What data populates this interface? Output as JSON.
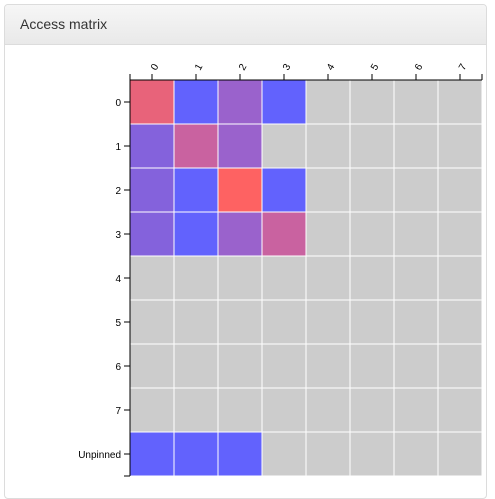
{
  "panel": {
    "title": "Access matrix"
  },
  "matrix": {
    "column_labels": [
      "0",
      "1",
      "2",
      "3",
      "4",
      "5",
      "6",
      "7"
    ],
    "row_labels": [
      "0",
      "1",
      "2",
      "3",
      "4",
      "5",
      "6",
      "7",
      "Unpinned"
    ],
    "cell_colors": [
      [
        "#e8637a",
        "#6262fd",
        "#9a62cc",
        "#6262fd",
        "#cccccc",
        "#cccccc",
        "#cccccc",
        "#cccccc"
      ],
      [
        "#8462dc",
        "#c962a0",
        "#9a62cc",
        "#cccccc",
        "#cccccc",
        "#cccccc",
        "#cccccc",
        "#cccccc"
      ],
      [
        "#8462dc",
        "#6262fd",
        "#fe6262",
        "#6262fd",
        "#cccccc",
        "#cccccc",
        "#cccccc",
        "#cccccc"
      ],
      [
        "#8462dc",
        "#6262fd",
        "#9a62cc",
        "#c962a0",
        "#cccccc",
        "#cccccc",
        "#cccccc",
        "#cccccc"
      ],
      [
        "#cccccc",
        "#cccccc",
        "#cccccc",
        "#cccccc",
        "#cccccc",
        "#cccccc",
        "#cccccc",
        "#cccccc"
      ],
      [
        "#cccccc",
        "#cccccc",
        "#cccccc",
        "#cccccc",
        "#cccccc",
        "#cccccc",
        "#cccccc",
        "#cccccc"
      ],
      [
        "#cccccc",
        "#cccccc",
        "#cccccc",
        "#cccccc",
        "#cccccc",
        "#cccccc",
        "#cccccc",
        "#cccccc"
      ],
      [
        "#cccccc",
        "#cccccc",
        "#cccccc",
        "#cccccc",
        "#cccccc",
        "#cccccc",
        "#cccccc",
        "#cccccc"
      ],
      [
        "#6262fd",
        "#6262fd",
        "#6262fd",
        "#cccccc",
        "#cccccc",
        "#cccccc",
        "#cccccc",
        "#cccccc"
      ]
    ]
  }
}
